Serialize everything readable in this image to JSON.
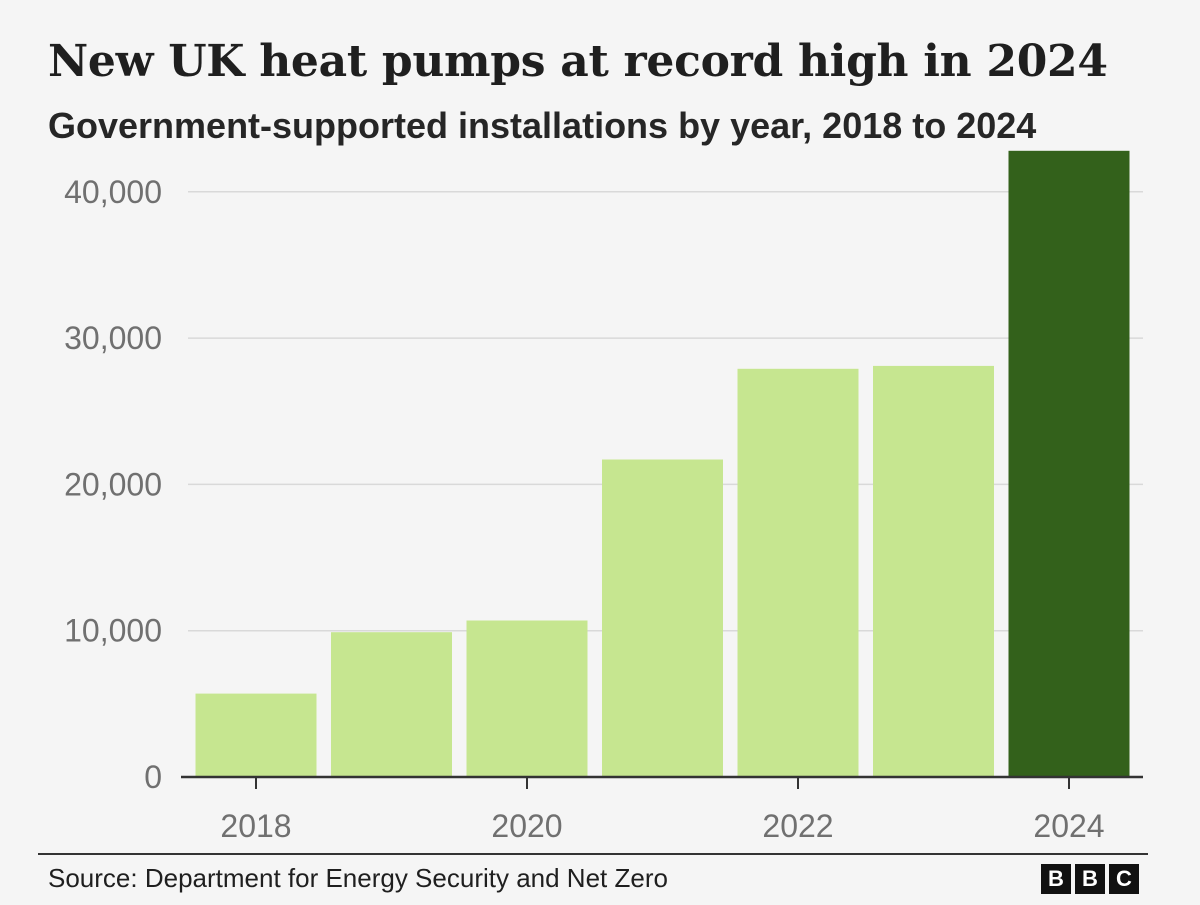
{
  "title": "New UK heat pumps at record high in 2024",
  "subtitle": "Government-supported installations by year, 2018 to 2024",
  "source": "Source: Department for Energy Security and Net Zero",
  "logo": {
    "letters": [
      "B",
      "B",
      "C"
    ]
  },
  "colors": {
    "background": "#f5f5f5",
    "bar_default": "#c6e690",
    "bar_highlight": "#33611b",
    "grid": "#d9d9d9",
    "axis": "#333333",
    "tick_text": "#707070"
  },
  "chart_data": {
    "type": "bar",
    "title": "New UK heat pumps at record high in 2024",
    "subtitle": "Government-supported installations by year, 2018 to 2024",
    "xlabel": "",
    "ylabel": "",
    "categories": [
      "2018",
      "2019",
      "2020",
      "2021",
      "2022",
      "2023",
      "2024"
    ],
    "values": [
      5700,
      9900,
      10700,
      21700,
      27900,
      28100,
      42800
    ],
    "highlight": [
      "2024"
    ],
    "x_tick_labels": [
      "2018",
      "2020",
      "2022",
      "2024"
    ],
    "ylim": [
      0,
      43000
    ],
    "y_ticks": [
      0,
      10000,
      20000,
      30000,
      40000
    ],
    "y_tick_labels": [
      "0",
      "10,000",
      "20,000",
      "30,000",
      "40,000"
    ],
    "grid": true,
    "legend": "none"
  }
}
